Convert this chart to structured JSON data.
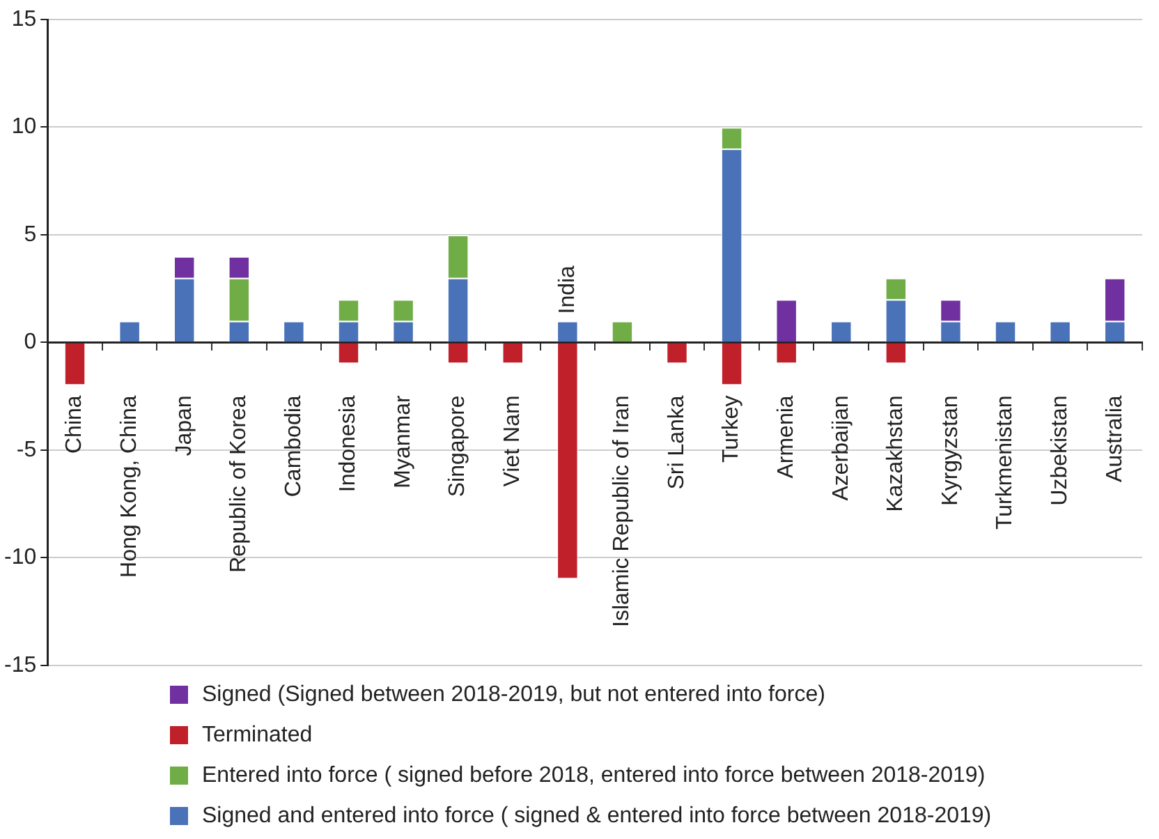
{
  "chart_data": {
    "type": "bar",
    "stacked": true,
    "categories": [
      "China",
      "Hong Kong, China",
      "Japan",
      "Republic of Korea",
      "Cambodia",
      "Indonesia",
      "Myanmar",
      "Singapore",
      "Viet Nam",
      "India",
      "Islamic Republic of Iran",
      "Sri Lanka",
      "Turkey",
      "Armenia",
      "Azerbaijan",
      "Kazakhstan",
      "Kyrgyzstan",
      "Turkmenistan",
      "Uzbekistan",
      "Australia"
    ],
    "series": [
      {
        "name": "Signed and entered into force ( signed & entered into force between 2018-2019)",
        "color": "#4a72b8",
        "values": [
          null,
          1,
          3,
          1,
          1,
          1,
          1,
          3,
          null,
          1,
          null,
          null,
          9,
          null,
          1,
          2,
          1,
          1,
          1,
          1
        ]
      },
      {
        "name": "Entered into force ( signed before 2018, entered into force between 2018-2019)",
        "color": "#70ad47",
        "values": [
          null,
          null,
          null,
          2,
          null,
          1,
          1,
          2,
          null,
          null,
          1,
          null,
          1,
          null,
          null,
          1,
          null,
          null,
          null,
          null
        ]
      },
      {
        "name": "Terminated",
        "color": "#c0202a",
        "values": [
          -2,
          null,
          null,
          null,
          null,
          -1,
          null,
          -1,
          -1,
          -11,
          null,
          -1,
          -2,
          -1,
          null,
          -1,
          null,
          null,
          null,
          null
        ]
      },
      {
        "name": "Signed (Signed between 2018-2019, but not entered into force)",
        "color": "#7030a0",
        "values": [
          null,
          null,
          1,
          1,
          null,
          null,
          null,
          null,
          null,
          null,
          null,
          null,
          null,
          2,
          null,
          null,
          1,
          null,
          null,
          2
        ]
      }
    ],
    "ylim": [
      -15,
      15
    ],
    "yticks": [
      -15,
      -10,
      -5,
      0,
      5,
      10,
      15
    ],
    "grid": "y",
    "legend": "bottom"
  }
}
